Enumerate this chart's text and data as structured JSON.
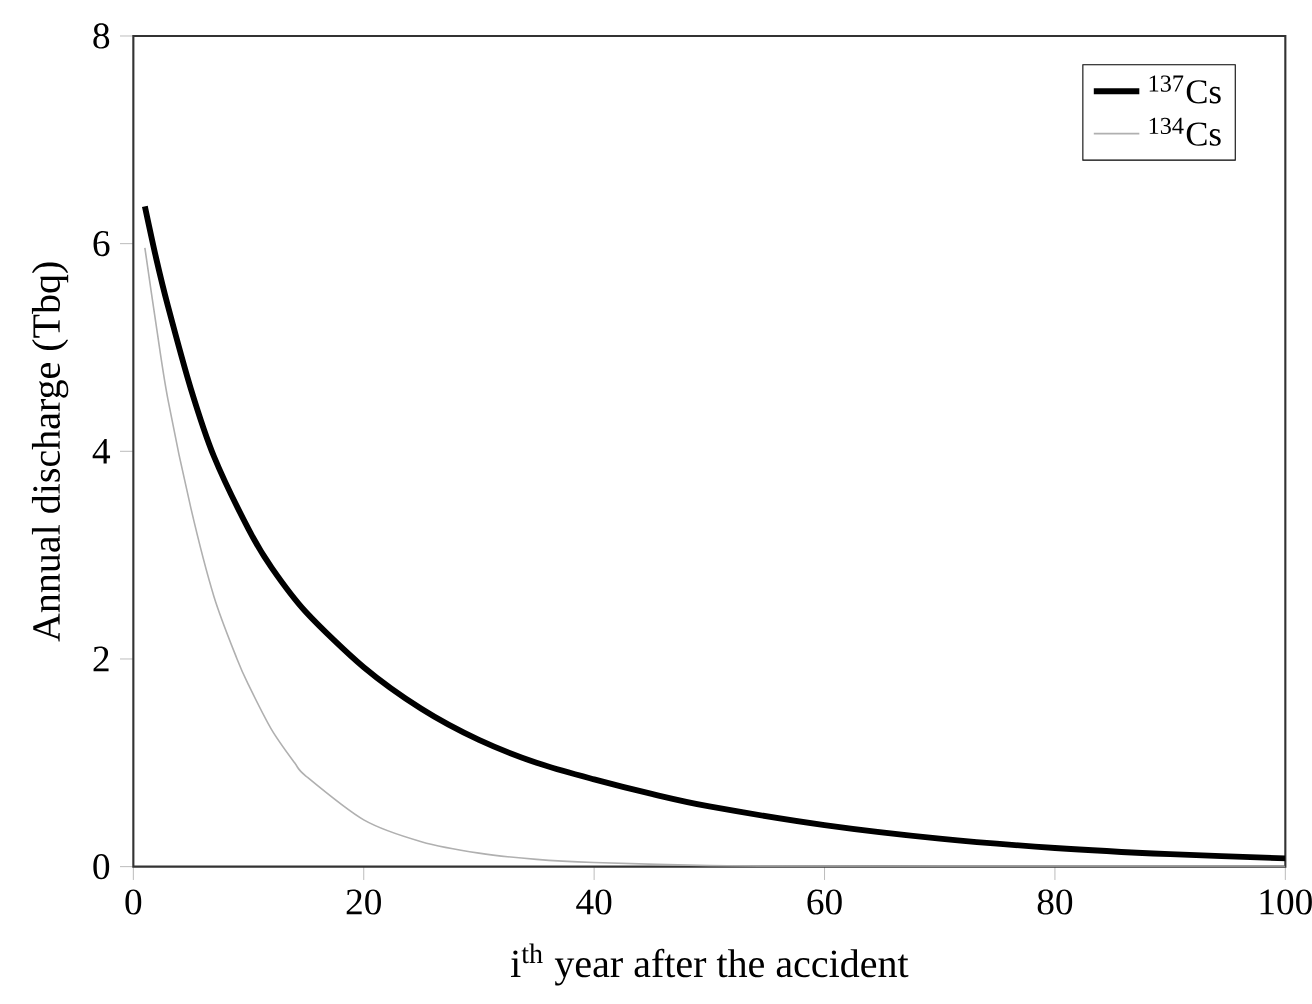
{
  "chart_data": {
    "type": "line",
    "xlabel": "i$^{th}$ year after the accident",
    "ylabel": "Annual discharge (Tbq)",
    "xlim": [
      0,
      100
    ],
    "ylim": [
      0,
      8
    ],
    "xticks": [
      0,
      20,
      40,
      60,
      80,
      100
    ],
    "yticks": [
      0,
      2,
      4,
      6,
      8
    ],
    "legend": "top right",
    "grid": false,
    "marker": "none",
    "line_style": "solid",
    "series": [
      {
        "name": "$^{137}$Cs",
        "color": "#000000",
        "x": [
          1,
          2,
          3,
          5,
          7,
          10,
          12,
          15,
          20,
          25,
          30,
          35,
          40,
          45,
          50,
          60,
          70,
          80,
          90,
          100
        ],
        "values": [
          6.36,
          5.85,
          5.4,
          4.6,
          3.95,
          3.25,
          2.88,
          2.45,
          1.92,
          1.52,
          1.22,
          1.0,
          0.84,
          0.7,
          0.58,
          0.4,
          0.27,
          0.18,
          0.12,
          0.08
        ]
      },
      {
        "name": "$^{134}$Cs",
        "color": "#b0b0b0",
        "x": [
          1,
          2,
          3,
          5,
          7,
          9,
          10,
          12,
          14,
          15,
          20,
          25,
          30,
          35,
          40,
          50,
          60,
          70,
          80,
          90,
          100
        ],
        "values": [
          5.96,
          5.2,
          4.5,
          3.45,
          2.6,
          2.0,
          1.75,
          1.32,
          1.0,
          0.87,
          0.45,
          0.24,
          0.13,
          0.07,
          0.04,
          0.01,
          0.0,
          0.0,
          0.0,
          0.0,
          0.0
        ]
      }
    ]
  }
}
